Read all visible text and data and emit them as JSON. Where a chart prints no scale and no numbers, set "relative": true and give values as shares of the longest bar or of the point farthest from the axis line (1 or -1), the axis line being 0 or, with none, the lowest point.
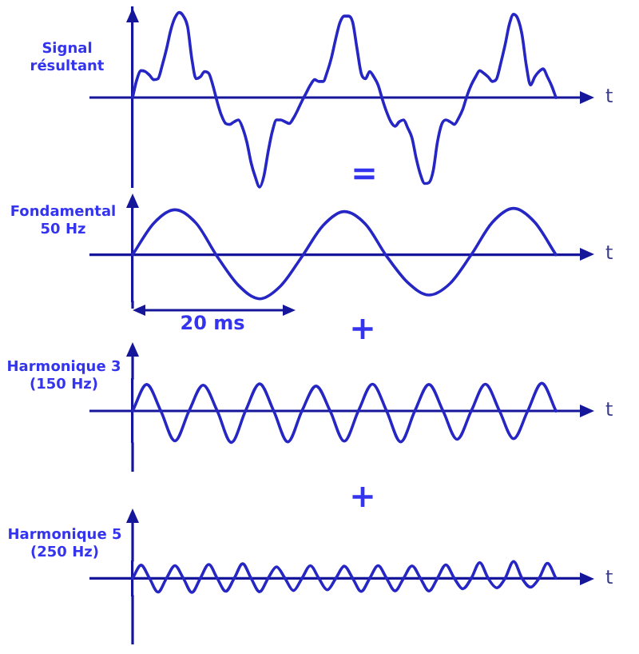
{
  "chart_data": [
    {
      "type": "line",
      "title": "Signal résultant",
      "xlabel": "t",
      "relative": true,
      "color": "#2626c4",
      "annotations": [
        "="
      ],
      "ref_lines": [
        {
          "axis": "y",
          "value": 0,
          "color": "#16169a"
        }
      ],
      "categories": [
        null,
        null,
        null,
        null,
        null,
        null,
        null,
        null,
        null,
        null,
        null,
        null,
        null,
        null,
        null,
        null,
        null,
        null,
        null,
        null,
        null,
        null,
        null,
        null,
        null,
        null,
        null,
        null,
        null,
        null,
        null,
        null,
        null,
        null,
        null,
        null,
        null,
        null,
        null,
        null,
        null,
        null,
        null,
        null,
        null,
        null,
        null,
        null,
        null,
        null,
        null,
        null,
        null,
        null,
        null,
        null,
        null,
        null,
        null,
        null,
        null,
        null,
        null,
        null,
        null,
        null,
        null,
        null,
        null,
        null,
        null,
        null,
        null,
        null,
        null,
        null,
        null,
        null,
        null,
        null,
        null,
        null,
        null,
        null,
        null,
        null,
        null,
        null,
        null,
        null,
        null,
        null,
        null,
        null,
        null,
        null,
        null,
        null,
        null,
        null,
        null
      ],
      "values": [
        0,
        0.2,
        0.3,
        0.29,
        0.25,
        0.2,
        0.21,
        0.36,
        0.54,
        0.75,
        0.89,
        0.95,
        0.91,
        0.79,
        0.43,
        0.21,
        0.23,
        0.29,
        0.27,
        0.13,
        -0.05,
        -0.2,
        -0.29,
        -0.3,
        -0.27,
        -0.25,
        -0.34,
        -0.5,
        -0.73,
        -0.89,
        -1,
        -0.88,
        -0.61,
        -0.38,
        -0.25,
        -0.25,
        -0.27,
        -0.29,
        -0.23,
        -0.14,
        -0.04,
        0.05,
        0.14,
        0.2,
        0.18,
        0.18,
        0.29,
        0.45,
        0.66,
        0.84,
        0.91,
        0.91,
        0.84,
        0.55,
        0.27,
        0.21,
        0.29,
        0.23,
        0.14,
        -0.02,
        -0.16,
        -0.27,
        -0.32,
        -0.27,
        -0.25,
        -0.34,
        -0.45,
        -0.68,
        -0.86,
        -0.96,
        -0.95,
        -0.82,
        -0.5,
        -0.3,
        -0.25,
        -0.27,
        -0.3,
        -0.23,
        -0.13,
        0.02,
        0.14,
        0.23,
        0.3,
        0.27,
        0.23,
        0.18,
        0.21,
        0.39,
        0.59,
        0.82,
        0.93,
        0.88,
        0.7,
        0.36,
        0.14,
        0.23,
        0.29,
        0.32,
        0.23,
        0.13,
        0
      ]
    },
    {
      "type": "line",
      "title": "Fondamental 50 Hz",
      "xlabel": "t",
      "relative": true,
      "color": "#2626c4",
      "annotations": [
        "20 ms",
        "+"
      ],
      "ref_lines": [
        {
          "axis": "y",
          "value": 0,
          "color": "#16169a"
        }
      ],
      "categories": [
        null,
        null,
        null,
        null,
        null,
        null,
        null,
        null,
        null,
        null,
        null,
        null,
        null,
        null,
        null,
        null,
        null,
        null,
        null,
        null,
        null
      ],
      "values": [
        0,
        0.68,
        0.97,
        0.68,
        -0.04,
        -0.66,
        -0.95,
        -0.67,
        -0.04,
        0.63,
        0.93,
        0.66,
        -0.03,
        -0.6,
        -0.87,
        -0.62,
        0,
        0.7,
        1,
        0.7,
        0
      ]
    },
    {
      "type": "line",
      "title": "Harmonique 3 (150 Hz)",
      "xlabel": "t",
      "relative": true,
      "color": "#2626c4",
      "annotations": [
        "+"
      ],
      "ref_lines": [
        {
          "axis": "y",
          "value": 0,
          "color": "#16169a"
        }
      ],
      "categories": [
        null,
        null,
        null,
        null,
        null,
        null,
        null,
        null,
        null,
        null,
        null,
        null,
        null,
        null,
        null,
        null,
        null,
        null,
        null,
        null,
        null,
        null,
        null,
        null,
        null,
        null,
        null,
        null,
        null,
        null,
        null
      ],
      "values": [
        0,
        0.84,
        0,
        -0.95,
        0,
        0.82,
        0,
        -1,
        0,
        0.86,
        0,
        -0.98,
        0,
        0.79,
        0,
        -0.96,
        0,
        0.85,
        0,
        -0.98,
        0,
        0.84,
        0,
        -0.9,
        0,
        0.85,
        0,
        -0.88,
        0,
        0.88,
        0
      ]
    },
    {
      "type": "line",
      "title": "Harmonique 5 (250 Hz)",
      "xlabel": "t",
      "relative": true,
      "color": "#2626c4",
      "ref_lines": [
        {
          "axis": "y",
          "value": 0,
          "color": "#16169a"
        }
      ],
      "categories": [
        null,
        null,
        null,
        null,
        null,
        null,
        null,
        null,
        null,
        null,
        null,
        null,
        null,
        null,
        null,
        null,
        null,
        null,
        null,
        null,
        null,
        null,
        null,
        null,
        null,
        null,
        null,
        null,
        null,
        null,
        null,
        null,
        null,
        null,
        null,
        null,
        null,
        null,
        null,
        null,
        null,
        null,
        null,
        null,
        null,
        null,
        null,
        null,
        null,
        null,
        null
      ],
      "values": [
        0,
        0.78,
        0,
        -0.81,
        0,
        0.75,
        0,
        -0.83,
        0,
        0.82,
        0,
        -0.76,
        0,
        0.86,
        0,
        -0.79,
        0,
        0.68,
        0,
        -0.72,
        0,
        0.75,
        0,
        -0.68,
        0,
        0.72,
        0,
        -0.77,
        0,
        0.75,
        0,
        -0.74,
        0,
        0.74,
        0,
        -0.75,
        0,
        0.8,
        0,
        -0.62,
        0,
        0.93,
        0,
        -0.56,
        0,
        1,
        0,
        -0.52,
        0,
        0.89,
        0
      ]
    }
  ]
}
